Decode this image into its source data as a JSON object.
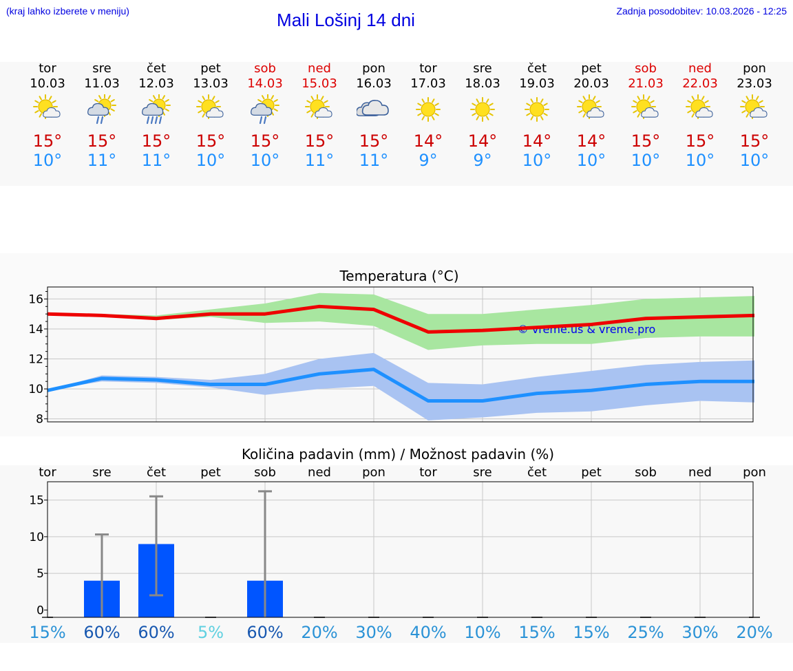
{
  "header": {
    "hint": "(kraj lahko izberete v meniju)",
    "title": "Mali Lošinj 14 dni",
    "updated": "Zadnja posodobitev: 10.03.2026 - 12:25"
  },
  "days": [
    {
      "name": "tor",
      "date": "10.03",
      "weekend": false,
      "icon": "sun-cloud-icon",
      "max": "15°",
      "min": "10°"
    },
    {
      "name": "sre",
      "date": "11.03",
      "weekend": false,
      "icon": "sun-cloud-rain-icon",
      "max": "15°",
      "min": "11°"
    },
    {
      "name": "čet",
      "date": "12.03",
      "weekend": false,
      "icon": "sun-cloud-heavy-rain-icon",
      "max": "15°",
      "min": "11°"
    },
    {
      "name": "pet",
      "date": "13.03",
      "weekend": false,
      "icon": "sun-cloud-icon",
      "max": "15°",
      "min": "10°"
    },
    {
      "name": "sob",
      "date": "14.03",
      "weekend": true,
      "icon": "sun-cloud-rain-icon",
      "max": "15°",
      "min": "10°"
    },
    {
      "name": "ned",
      "date": "15.03",
      "weekend": true,
      "icon": "sun-cloud-icon",
      "max": "15°",
      "min": "11°"
    },
    {
      "name": "pon",
      "date": "16.03",
      "weekend": false,
      "icon": "cloud-icon",
      "max": "15°",
      "min": "11°"
    },
    {
      "name": "tor",
      "date": "17.03",
      "weekend": false,
      "icon": "sun-icon",
      "max": "14°",
      "min": "9°"
    },
    {
      "name": "sre",
      "date": "18.03",
      "weekend": false,
      "icon": "sun-icon",
      "max": "14°",
      "min": "9°"
    },
    {
      "name": "čet",
      "date": "19.03",
      "weekend": false,
      "icon": "sun-icon",
      "max": "14°",
      "min": "10°"
    },
    {
      "name": "pet",
      "date": "20.03",
      "weekend": false,
      "icon": "sun-cloud-icon",
      "max": "14°",
      "min": "10°"
    },
    {
      "name": "sob",
      "date": "21.03",
      "weekend": true,
      "icon": "sun-cloud-icon",
      "max": "15°",
      "min": "10°"
    },
    {
      "name": "ned",
      "date": "22.03",
      "weekend": true,
      "icon": "sun-cloud-icon",
      "max": "15°",
      "min": "10°"
    },
    {
      "name": "pon",
      "date": "23.03",
      "weekend": false,
      "icon": "sun-cloud-icon",
      "max": "15°",
      "min": "10°"
    }
  ],
  "colors": {
    "max_line": "#ee0000",
    "max_band": "#a8e6a0",
    "min_line": "#1e90ff",
    "min_band": "#a9c3f2",
    "bar": "#0055ff",
    "error": "#888888",
    "weekend": "#dd0000"
  },
  "chart_data": [
    {
      "type": "line",
      "title": "Temperatura (°C)",
      "watermark": "© vreme.us & vreme.pro",
      "ylim": [
        7.8,
        16.8
      ],
      "yticks": [
        8,
        10,
        12,
        14,
        16
      ],
      "series": [
        {
          "name": "max",
          "values": [
            15.0,
            14.9,
            14.7,
            15.0,
            15.0,
            15.5,
            15.3,
            13.8,
            13.9,
            14.1,
            14.3,
            14.7,
            14.8,
            14.9
          ],
          "low": [
            15.0,
            14.8,
            14.6,
            14.8,
            14.4,
            14.5,
            14.2,
            12.6,
            12.9,
            13.0,
            13.0,
            13.4,
            13.5,
            13.5
          ],
          "high": [
            15.1,
            15.0,
            14.9,
            15.3,
            15.7,
            16.4,
            16.3,
            15.0,
            15.0,
            15.3,
            15.6,
            16.0,
            16.1,
            16.2
          ]
        },
        {
          "name": "min",
          "values": [
            9.9,
            10.7,
            10.6,
            10.3,
            10.3,
            11.0,
            11.3,
            9.2,
            9.2,
            9.7,
            9.9,
            10.3,
            10.5,
            10.5
          ],
          "low": [
            9.9,
            10.5,
            10.4,
            10.1,
            9.6,
            10.0,
            10.2,
            7.9,
            8.1,
            8.4,
            8.5,
            8.9,
            9.2,
            9.1
          ],
          "high": [
            9.9,
            10.9,
            10.8,
            10.6,
            11.0,
            12.0,
            12.4,
            10.4,
            10.3,
            10.8,
            11.2,
            11.6,
            11.8,
            11.9
          ]
        }
      ]
    },
    {
      "type": "bar",
      "title": "Količina padavin (mm) / Možnost padavin (%)",
      "categories": [
        "tor",
        "sre",
        "čet",
        "pet",
        "sob",
        "ned",
        "pon",
        "tor",
        "sre",
        "čet",
        "pet",
        "sob",
        "ned",
        "pon"
      ],
      "ylim": [
        -1,
        17.5
      ],
      "yticks": [
        0,
        5,
        10,
        15
      ],
      "values": [
        0,
        4,
        9,
        0,
        4,
        0,
        0,
        0,
        0,
        0,
        0,
        0,
        0,
        0
      ],
      "err_low": [
        0,
        0,
        2,
        0,
        0,
        0,
        0,
        0,
        0,
        0,
        0,
        0,
        0,
        0
      ],
      "err_high": [
        0,
        10.3,
        15.5,
        0,
        16.2,
        0,
        0,
        0,
        0,
        0,
        0,
        0,
        0,
        0
      ],
      "chance": [
        "15%",
        "60%",
        "60%",
        "5%",
        "60%",
        "20%",
        "30%",
        "40%",
        "10%",
        "15%",
        "15%",
        "25%",
        "30%",
        "20%"
      ],
      "chance_colors": [
        "#2a92d6",
        "#1858b0",
        "#1858b0",
        "#5fd0e0",
        "#1858b0",
        "#2a92d6",
        "#2a92d6",
        "#2a92d6",
        "#2a92d6",
        "#2a92d6",
        "#2a92d6",
        "#2a92d6",
        "#2a92d6",
        "#2a92d6"
      ]
    }
  ]
}
